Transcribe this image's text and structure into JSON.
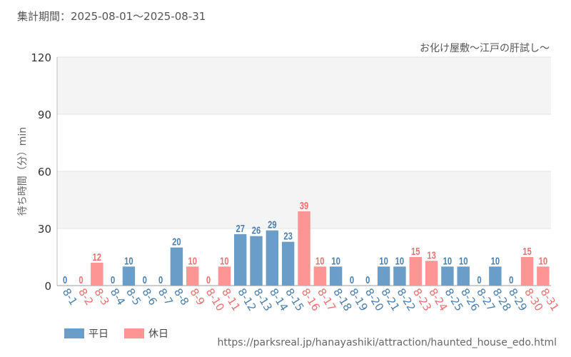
{
  "header": {
    "period": "集計期間：2025-08-01～2025-08-31"
  },
  "colors": {
    "weekday": "#6a9ec8",
    "holiday": "#fd9595",
    "weekday_text": "#4a7fae",
    "holiday_text": "#f07070"
  },
  "chart_data": {
    "type": "bar",
    "title": "お化け屋敷～江戸の肝試し～",
    "ylabel": "待ち時間（分）min",
    "xlabel": "",
    "ylim": [
      0,
      120
    ],
    "yticks": [
      0,
      30,
      60,
      90,
      120
    ],
    "grid": true,
    "categories": [
      "8-1",
      "8-2",
      "8-3",
      "8-4",
      "8-5",
      "8-6",
      "8-7",
      "8-8",
      "8-9",
      "8-10",
      "8-11",
      "8-12",
      "8-13",
      "8-14",
      "8-15",
      "8-16",
      "8-17",
      "8-18",
      "8-19",
      "8-20",
      "8-21",
      "8-22",
      "8-23",
      "8-24",
      "8-25",
      "8-26",
      "8-27",
      "8-28",
      "8-29",
      "8-30",
      "8-31"
    ],
    "values": [
      0,
      0,
      12,
      0,
      10,
      0,
      0,
      20,
      10,
      0,
      10,
      27,
      26,
      29,
      23,
      39,
      10,
      10,
      0,
      0,
      10,
      10,
      15,
      13,
      10,
      10,
      0,
      10,
      0,
      15,
      10
    ],
    "day_type": [
      "平日",
      "休日",
      "休日",
      "平日",
      "平日",
      "平日",
      "平日",
      "平日",
      "休日",
      "休日",
      "休日",
      "平日",
      "平日",
      "平日",
      "平日",
      "休日",
      "休日",
      "平日",
      "平日",
      "平日",
      "平日",
      "平日",
      "休日",
      "休日",
      "平日",
      "平日",
      "平日",
      "平日",
      "平日",
      "休日",
      "休日"
    ],
    "legend": [
      {
        "label": "平日",
        "key": "weekday"
      },
      {
        "label": "休日",
        "key": "holiday"
      }
    ],
    "legend_position": "bottom-left"
  },
  "footer": {
    "source": "https://parksreal.jp/hanayashiki/attraction/haunted_house_edo.html"
  }
}
